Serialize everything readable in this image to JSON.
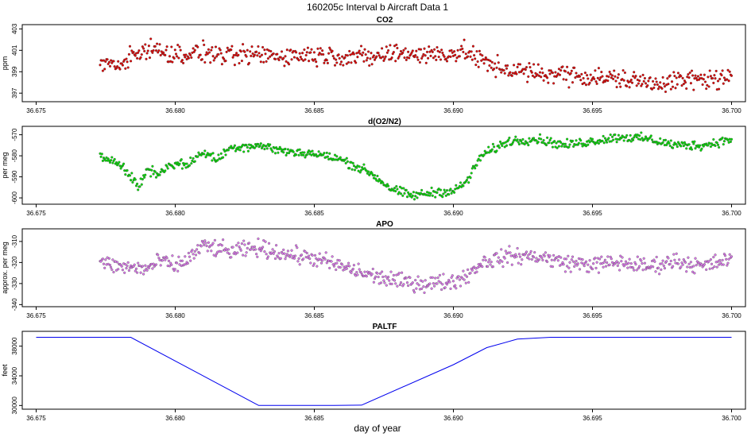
{
  "figure": {
    "title": "160205c   Interval b Aircraft Data 1",
    "xlabel": "day of year",
    "xlim": [
      36.6745,
      36.7005
    ],
    "xticks": [
      36.675,
      36.68,
      36.685,
      36.69,
      36.695,
      36.7
    ],
    "xtick_labels": [
      "36.675",
      "36.680",
      "36.685",
      "36.690",
      "36.695",
      "36.700"
    ]
  },
  "chart_data": [
    {
      "type": "scatter",
      "title": "CO2",
      "ylabel": "ppm",
      "ylim": [
        396.2,
        403.4
      ],
      "yticks": [
        397,
        399,
        401,
        403
      ],
      "ytick_labels": [
        "397",
        "399",
        "401",
        "403"
      ],
      "color": "#e00000",
      "x_range": [
        36.6773,
        36.7
      ],
      "profile": [
        [
          36.6773,
          400.0
        ],
        [
          36.678,
          399.6
        ],
        [
          36.6785,
          400.6
        ],
        [
          36.679,
          401.2
        ],
        [
          36.6795,
          400.9
        ],
        [
          36.68,
          400.6
        ],
        [
          36.681,
          400.8
        ],
        [
          36.682,
          400.4
        ],
        [
          36.683,
          400.6
        ],
        [
          36.684,
          400.5
        ],
        [
          36.685,
          400.6
        ],
        [
          36.686,
          400.5
        ],
        [
          36.687,
          400.3
        ],
        [
          36.688,
          400.8
        ],
        [
          36.689,
          400.6
        ],
        [
          36.6905,
          400.8
        ],
        [
          36.6913,
          399.6
        ],
        [
          36.692,
          399.2
        ],
        [
          36.693,
          398.8
        ],
        [
          36.694,
          398.8
        ],
        [
          36.695,
          398.5
        ],
        [
          36.696,
          398.3
        ],
        [
          36.697,
          398.0
        ],
        [
          36.698,
          398.1
        ],
        [
          36.699,
          398.3
        ],
        [
          36.7,
          398.3
        ]
      ],
      "noise": 0.75,
      "count": 700
    },
    {
      "type": "scatter",
      "title": "d(O2/N2)",
      "ylabel": "per meg",
      "ylim": [
        -603,
        -566
      ],
      "yticks": [
        -600,
        -590,
        -580,
        -570
      ],
      "ytick_labels": [
        "-600",
        "-590",
        "-580",
        "-570"
      ],
      "color": "#00dd00",
      "x_range": [
        36.6773,
        36.7
      ],
      "profile": [
        [
          36.6773,
          -581
        ],
        [
          36.6779,
          -582
        ],
        [
          36.6784,
          -590
        ],
        [
          36.6787,
          -595
        ],
        [
          36.679,
          -586
        ],
        [
          36.6794,
          -589
        ],
        [
          36.6798,
          -584
        ],
        [
          36.6805,
          -584
        ],
        [
          36.681,
          -578
        ],
        [
          36.6815,
          -582
        ],
        [
          36.682,
          -576
        ],
        [
          36.683,
          -575
        ],
        [
          36.684,
          -578
        ],
        [
          36.685,
          -579
        ],
        [
          36.686,
          -582
        ],
        [
          36.687,
          -588
        ],
        [
          36.6878,
          -596
        ],
        [
          36.6885,
          -599
        ],
        [
          36.689,
          -598
        ],
        [
          36.6895,
          -597
        ],
        [
          36.69,
          -597
        ],
        [
          36.6905,
          -592
        ],
        [
          36.691,
          -580
        ],
        [
          36.692,
          -573
        ],
        [
          36.693,
          -572
        ],
        [
          36.694,
          -575
        ],
        [
          36.695,
          -573
        ],
        [
          36.696,
          -571
        ],
        [
          36.697,
          -572
        ],
        [
          36.698,
          -575
        ],
        [
          36.699,
          -575
        ],
        [
          36.7,
          -572
        ]
      ],
      "noise": 1.8,
      "count": 700
    },
    {
      "type": "scatter",
      "title": "APO",
      "ylabel": "approx. per meg",
      "ylim": [
        -341,
        -304
      ],
      "yticks": [
        -340,
        -330,
        -320,
        -310
      ],
      "ytick_labels": [
        "-340",
        "-330",
        "-320",
        "-310"
      ],
      "color": "#dd77ee",
      "x_range": [
        36.6773,
        36.7
      ],
      "profile": [
        [
          36.6773,
          -320
        ],
        [
          36.678,
          -322
        ],
        [
          36.679,
          -323
        ],
        [
          36.6795,
          -319
        ],
        [
          36.68,
          -322
        ],
        [
          36.6805,
          -318
        ],
        [
          36.681,
          -312
        ],
        [
          36.682,
          -315
        ],
        [
          36.683,
          -313
        ],
        [
          36.684,
          -316
        ],
        [
          36.685,
          -318
        ],
        [
          36.686,
          -322
        ],
        [
          36.687,
          -326
        ],
        [
          36.688,
          -329
        ],
        [
          36.689,
          -330
        ],
        [
          36.69,
          -329
        ],
        [
          36.6905,
          -326
        ],
        [
          36.691,
          -320
        ],
        [
          36.692,
          -317
        ],
        [
          36.693,
          -317
        ],
        [
          36.694,
          -320
        ],
        [
          36.695,
          -321
        ],
        [
          36.696,
          -320
        ],
        [
          36.697,
          -322
        ],
        [
          36.698,
          -319
        ],
        [
          36.699,
          -322
        ],
        [
          36.7,
          -318
        ]
      ],
      "noise": 3.2,
      "count": 700
    },
    {
      "type": "line",
      "title": "PALTF",
      "ylabel": "feet",
      "ylim": [
        29500,
        40000
      ],
      "yticks": [
        30000,
        34000,
        38000
      ],
      "ytick_labels": [
        "30000",
        "34000",
        "38000"
      ],
      "color": "#0000ee",
      "points": [
        [
          36.675,
          39200
        ],
        [
          36.6784,
          39200
        ],
        [
          36.683,
          30000
        ],
        [
          36.6843,
          30000
        ],
        [
          36.6857,
          30000
        ],
        [
          36.6867,
          30050
        ],
        [
          36.69,
          35500
        ],
        [
          36.6912,
          37800
        ],
        [
          36.6923,
          38950
        ],
        [
          36.6935,
          39200
        ],
        [
          36.7,
          39200
        ]
      ]
    }
  ]
}
